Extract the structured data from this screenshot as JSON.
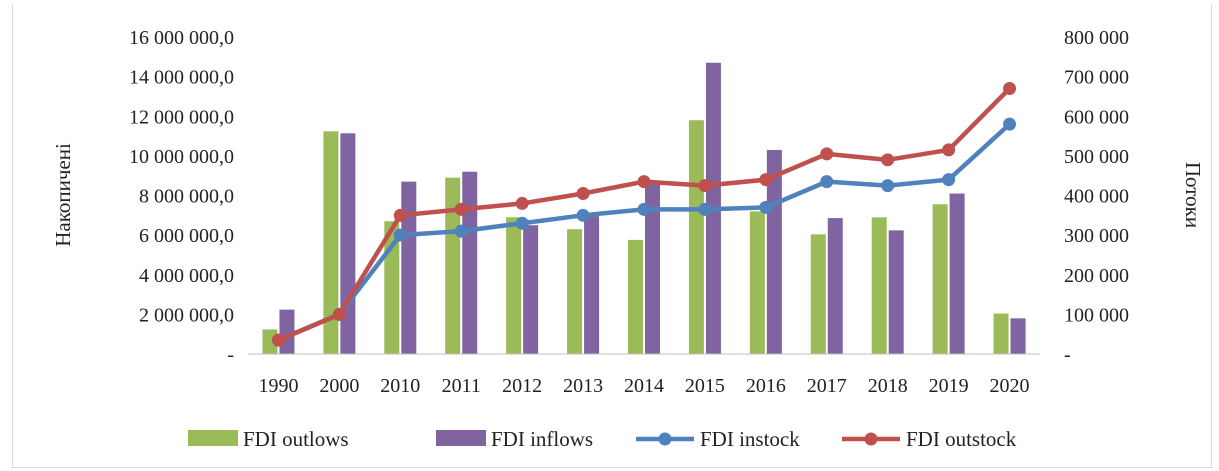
{
  "chart_data": {
    "type": "bar",
    "categories": [
      "1990",
      "2000",
      "2010",
      "2011",
      "2012",
      "2013",
      "2014",
      "2015",
      "2016",
      "2017",
      "2018",
      "2019",
      "2020"
    ],
    "ylabel_left": "Накопичені",
    "ylabel_right": "Потоки",
    "left_axis": {
      "range": [
        0,
        16000000
      ],
      "ticks": [
        0,
        2000000,
        4000000,
        6000000,
        8000000,
        10000000,
        12000000,
        14000000,
        16000000
      ],
      "tick_labels": [
        "-",
        "2 000 000,0",
        "4 000 000,0",
        "6 000 000,0",
        "8 000 000,0",
        "10 000 000,0",
        "12 000 000,0",
        "14 000 000,0",
        "16 000 000,0"
      ]
    },
    "right_axis": {
      "range": [
        0,
        800000
      ],
      "ticks": [
        0,
        100000,
        200000,
        300000,
        400000,
        500000,
        600000,
        700000,
        800000
      ],
      "tick_labels": [
        "-",
        "100 000",
        "200 000",
        "300 000",
        "400 000",
        "500 000",
        "600 000",
        "700 000",
        "800 000"
      ]
    },
    "series": [
      {
        "name": "FDI outlows",
        "kind": "bar",
        "axis": "right",
        "color": "#9bbb59",
        "values": [
          62000,
          562000,
          335000,
          445000,
          345000,
          315000,
          288000,
          590000,
          360000,
          302000,
          345000,
          378000,
          102000
        ]
      },
      {
        "name": "FDI inflows",
        "kind": "bar",
        "axis": "right",
        "color": "#8064a2",
        "values": [
          112000,
          557000,
          435000,
          460000,
          325000,
          348000,
          428000,
          735000,
          515000,
          343000,
          312000,
          405000,
          90000
        ]
      },
      {
        "name": "FDI instock",
        "kind": "line",
        "axis": "left",
        "color": "#4f81bd",
        "values": [
          700000,
          2000000,
          6000000,
          6200000,
          6600000,
          7000000,
          7300000,
          7300000,
          7400000,
          8700000,
          8500000,
          8800000,
          11600000
        ]
      },
      {
        "name": "FDI outstock",
        "kind": "line",
        "axis": "left",
        "color": "#c0504d",
        "values": [
          700000,
          2000000,
          7000000,
          7300000,
          7600000,
          8100000,
          8700000,
          8500000,
          8800000,
          10100000,
          9800000,
          10300000,
          13400000
        ]
      }
    ],
    "grid": false,
    "legend_position": "bottom"
  }
}
